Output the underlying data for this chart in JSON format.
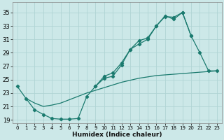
{
  "xlabel": "Humidex (Indice chaleur)",
  "bg_color": "#cce8e8",
  "grid_color": "#b0d4d4",
  "line_color": "#1a7a6e",
  "xlim": [
    -0.5,
    23.5
  ],
  "ylim": [
    18.5,
    36.5
  ],
  "xticks": [
    0,
    1,
    2,
    3,
    4,
    5,
    6,
    7,
    8,
    9,
    10,
    11,
    12,
    13,
    14,
    15,
    16,
    17,
    18,
    19,
    20,
    21,
    22,
    23
  ],
  "yticks": [
    19,
    21,
    23,
    25,
    27,
    29,
    31,
    33,
    35
  ],
  "curve1_x": [
    0,
    1,
    2,
    3,
    4,
    5,
    6,
    7,
    8,
    9,
    10,
    11,
    12,
    13,
    14,
    15,
    16,
    17,
    18,
    19,
    20,
    21,
    22,
    23
  ],
  "curve1_y": [
    24.0,
    22.2,
    20.5,
    19.8,
    19.2,
    19.1,
    19.1,
    19.2,
    22.5,
    24.0,
    25.5,
    26.0,
    27.5,
    29.5,
    30.3,
    31.0,
    33.0,
    34.4,
    34.3,
    35.0,
    31.5,
    29.0,
    26.3,
    26.3
  ],
  "curve2_x": [
    9,
    10,
    11,
    12,
    13,
    14,
    15,
    16,
    17,
    18,
    19,
    20
  ],
  "curve2_y": [
    24.0,
    25.2,
    25.5,
    27.2,
    29.5,
    30.8,
    31.2,
    33.0,
    34.5,
    34.0,
    35.0,
    31.5
  ],
  "curve3_x": [
    1,
    2,
    3,
    4,
    5,
    6,
    7,
    8,
    9,
    10,
    11,
    12,
    13,
    14,
    15,
    16,
    17,
    18,
    19,
    20,
    21,
    22,
    23
  ],
  "curve3_y": [
    22.2,
    21.5,
    21.0,
    21.2,
    21.5,
    22.0,
    22.5,
    23.0,
    23.4,
    23.8,
    24.2,
    24.6,
    24.9,
    25.2,
    25.4,
    25.6,
    25.7,
    25.8,
    25.9,
    26.0,
    26.1,
    26.2,
    26.3
  ]
}
